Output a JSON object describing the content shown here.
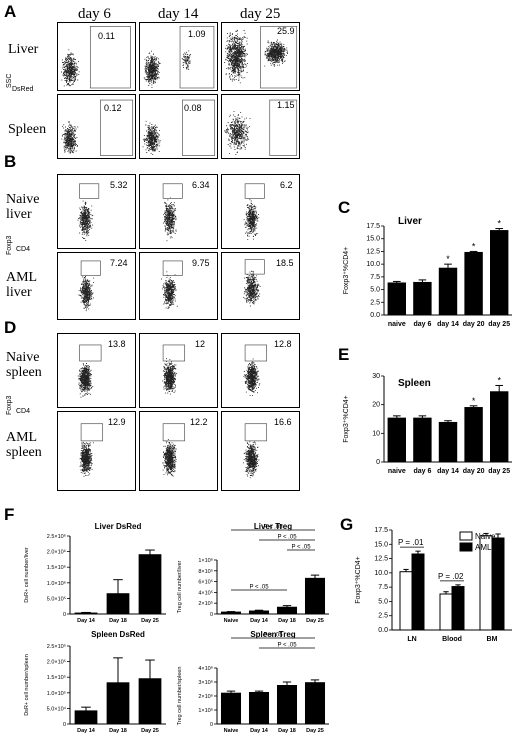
{
  "panel_letters": [
    "A",
    "B",
    "C",
    "D",
    "E",
    "F",
    "G"
  ],
  "panelA": {
    "columns": [
      "day 6",
      "day 14",
      "day 25"
    ],
    "rows": [
      {
        "label": "Liver",
        "values": [
          "0.11",
          "1.09",
          "25.9"
        ]
      },
      {
        "label": "Spleen",
        "values": [
          "0.12",
          "0.08",
          "1.15"
        ]
      }
    ],
    "y_axis": "SSC",
    "x_axis": "DsRed"
  },
  "panelB": {
    "rows": [
      {
        "label": [
          "Naive",
          "liver"
        ],
        "values": [
          "5.32",
          "6.34",
          "6.2"
        ]
      },
      {
        "label": [
          "AML",
          "liver"
        ],
        "values": [
          "7.24",
          "9.75",
          "18.5"
        ]
      }
    ],
    "y_axis": "Foxp3",
    "x_axis": "CD4"
  },
  "panelD": {
    "rows": [
      {
        "label": [
          "Naive",
          "spleen"
        ],
        "values": [
          "13.8",
          "12",
          "12.8"
        ]
      },
      {
        "label": [
          "AML",
          "spleen"
        ],
        "values": [
          "12.9",
          "12.2",
          "16.6"
        ]
      }
    ],
    "y_axis": "Foxp3",
    "x_axis": "CD4"
  },
  "chart_data": [
    {
      "id": "C",
      "type": "bar",
      "title": "Liver",
      "ylabel": "Foxp3⁺%CD4+",
      "categories": [
        "naive",
        "day 6",
        "day 14",
        "day 20",
        "day 25"
      ],
      "values": [
        6.3,
        6.4,
        9.2,
        12.3,
        16.6
      ],
      "errors": [
        0.3,
        0.5,
        0.8,
        0.2,
        0.4
      ],
      "significant": [
        false,
        false,
        true,
        true,
        true
      ],
      "ylim": [
        0,
        17.5
      ],
      "yticks": [
        0.0,
        2.5,
        5.0,
        7.5,
        10.0,
        12.5,
        15.0,
        17.5
      ],
      "ytick_labels": [
        "0.0",
        "2.5",
        "5.0",
        "7.5",
        "10.0",
        "12.5",
        "15.0",
        "17.5"
      ]
    },
    {
      "id": "E",
      "type": "bar",
      "title": "Spleen",
      "ylabel": "Foxp3⁺%CD4+",
      "categories": [
        "naive",
        "day 6",
        "day 14",
        "day 20",
        "day 25"
      ],
      "values": [
        15.3,
        15.3,
        13.8,
        19.0,
        24.5
      ],
      "errors": [
        0.8,
        0.8,
        0.6,
        0.6,
        2.2
      ],
      "significant": [
        false,
        false,
        false,
        true,
        true
      ],
      "ylim": [
        0,
        30
      ],
      "yticks": [
        0,
        10,
        20,
        30
      ],
      "ytick_labels": [
        "0",
        "10",
        "20",
        "30"
      ]
    },
    {
      "id": "F1",
      "type": "bar",
      "title": "Liver DsRed",
      "ylabel": "DsR+ cell number/liver",
      "categories": [
        "Day 14",
        "Day 18",
        "Day 25"
      ],
      "values": [
        0.3,
        6.5,
        19.0
      ],
      "errors": [
        0.2,
        4.5,
        1.5
      ],
      "ylim": [
        0,
        25
      ],
      "yticks": [
        0,
        5,
        10,
        15,
        20,
        25
      ],
      "ytick_labels": [
        "0",
        "5.0×10⁵",
        "1.0×10⁶",
        "1.5×10⁶",
        "2.0×10⁶",
        "2.5×10⁶"
      ]
    },
    {
      "id": "F2",
      "type": "bar",
      "title": "Liver Treg",
      "ylabel": "Treg cell number/liver",
      "categories": [
        "Naive",
        "Day 14",
        "Day 18",
        "Day 25"
      ],
      "values": [
        0.35,
        0.55,
        1.25,
        6.6
      ],
      "errors": [
        0.1,
        0.15,
        0.3,
        0.6
      ],
      "ylim": [
        0,
        10
      ],
      "yticks": [
        0,
        2,
        4,
        6,
        8,
        10
      ],
      "ytick_labels": [
        "0",
        "2×10⁵",
        "4×10⁵",
        "6×10⁵",
        "8×10⁵",
        "1×10⁶"
      ],
      "brackets": [
        {
          "from": 0,
          "to": 3,
          "label": "P < .05"
        },
        {
          "from": 1,
          "to": 3,
          "label": "P < .05"
        },
        {
          "from": 2,
          "to": 3,
          "label": "P < .05"
        },
        {
          "from": 0,
          "to": 2,
          "label": "P < .05"
        }
      ]
    },
    {
      "id": "F3",
      "type": "bar",
      "title": "Spleen DsRed",
      "ylabel": "DsR+ cell number/spleen",
      "categories": [
        "Day 14",
        "Day 18",
        "Day 25"
      ],
      "values": [
        4.2,
        13.2,
        14.5
      ],
      "errors": [
        1.2,
        8.0,
        6.0
      ],
      "ylim": [
        0,
        25
      ],
      "yticks": [
        0,
        5,
        10,
        15,
        20,
        25
      ],
      "ytick_labels": [
        "0",
        "5.0×10⁴",
        "1.0×10⁵",
        "1.5×10⁵",
        "2.0×10⁵",
        "2.5×10⁵"
      ]
    },
    {
      "id": "F4",
      "type": "bar",
      "title": "Spleen Treg",
      "ylabel": "Treg cell number/spleen",
      "categories": [
        "Naive",
        "Day 14",
        "Day 18",
        "Day 25"
      ],
      "values": [
        2.2,
        2.25,
        2.75,
        2.95
      ],
      "errors": [
        0.15,
        0.1,
        0.25,
        0.2
      ],
      "ylim": [
        0,
        4
      ],
      "yticks": [
        0,
        1,
        2,
        3,
        4
      ],
      "ytick_labels": [
        "0",
        "1×10⁶",
        "2×10⁶",
        "3×10⁶",
        "4×10⁶"
      ],
      "brackets": [
        {
          "from": 0,
          "to": 3,
          "label": "P < .05"
        },
        {
          "from": 1,
          "to": 3,
          "label": "P < .05"
        }
      ]
    },
    {
      "id": "G",
      "type": "bar",
      "ylabel": "Foxp3⁺%CD4+",
      "categories": [
        "LN",
        "Blood",
        "BM"
      ],
      "series": [
        {
          "name": "Naive",
          "values": [
            10.2,
            6.3,
            16.5
          ],
          "errors": [
            0.4,
            0.4,
            0.4
          ]
        },
        {
          "name": "AML",
          "values": [
            13.3,
            7.6,
            16.1
          ],
          "errors": [
            0.5,
            0.3,
            0.7
          ]
        }
      ],
      "ylim": [
        0,
        17.5
      ],
      "yticks": [
        0.0,
        2.5,
        5.0,
        7.5,
        10.0,
        12.5,
        15.0,
        17.5
      ],
      "ytick_labels": [
        "0.0",
        "2.5",
        "5.0",
        "7.5",
        "10.0",
        "12.5",
        "15.0",
        "17.5"
      ],
      "annotations": [
        {
          "category": 0,
          "label": "P = .01"
        },
        {
          "category": 1,
          "label": "P = .02"
        }
      ],
      "legend_position": "top-right"
    }
  ]
}
